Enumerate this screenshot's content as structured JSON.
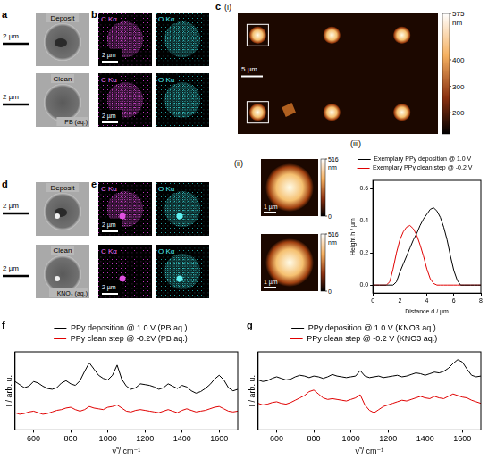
{
  "panels": {
    "a": {
      "letter": "a",
      "images": [
        {
          "label": "Deposit",
          "scale_bar": "2 µm"
        },
        {
          "label": "Clean",
          "medium": "PB (aq.)",
          "scale_bar": "2 µm"
        }
      ]
    },
    "b": {
      "letter": "b",
      "maps": [
        "C Kα",
        "O Kα"
      ],
      "rows": [
        {
          "scale_bar": "2 µm"
        },
        {
          "scale_bar": "2 µm"
        }
      ]
    },
    "c": {
      "letter": "c",
      "i": {
        "label": "(i)",
        "scale_bar": "5 µm",
        "colorbar": {
          "range": [
            120,
            575
          ],
          "ticks": [
            575,
            400,
            300,
            200
          ],
          "unit": "nm"
        }
      },
      "ii": {
        "label": "(ii)",
        "images": [
          {
            "scale_bar": "1 µm",
            "colorbar": {
              "range": [
                0,
                516
              ],
              "ticks": [
                516,
                0
              ],
              "unit": "nm"
            }
          },
          {
            "scale_bar": "1 µm",
            "colorbar": {
              "range": [
                0,
                516
              ],
              "ticks": [
                516,
                0
              ],
              "unit": "nm"
            }
          }
        ]
      }
    },
    "d": {
      "letter": "d",
      "images": [
        {
          "label": "Deposit",
          "scale_bar": "2 µm"
        },
        {
          "label": "Clean",
          "medium": "KNO₃ (aq.)",
          "scale_bar": "2 µm"
        }
      ]
    },
    "e": {
      "letter": "e",
      "maps": [
        "C Kα",
        "O Kα"
      ],
      "rows": [
        {
          "scale_bar": "2 µm"
        },
        {
          "scale_bar": "2 µm"
        }
      ]
    }
  },
  "chart_data": [
    {
      "letter": "(iii)",
      "type": "line",
      "x_label": "Distance d / µm",
      "y_label": "Height h / µm",
      "x": [
        0,
        0.25,
        0.5,
        0.75,
        1,
        1.25,
        1.5,
        1.75,
        2,
        2.25,
        2.5,
        2.75,
        3,
        3.25,
        3.5,
        3.75,
        4,
        4.25,
        4.5,
        4.75,
        5,
        5.25,
        5.5,
        5.75,
        6,
        6.25,
        6.5,
        6.75,
        7,
        7.25,
        7.5,
        7.75,
        8
      ],
      "series": [
        {
          "name": "Exemplary PPy deposition @ 1.0 V",
          "color": "#000000",
          "values": [
            0,
            0,
            0,
            0,
            0,
            0,
            0,
            0.02,
            0.08,
            0.13,
            0.18,
            0.23,
            0.28,
            0.32,
            0.37,
            0.41,
            0.44,
            0.47,
            0.48,
            0.46,
            0.42,
            0.36,
            0.28,
            0.18,
            0.09,
            0.03,
            0,
            0,
            0,
            0,
            0,
            0,
            0
          ]
        },
        {
          "name": "Exemplary PPy clean step @ -0.2 V",
          "color": "#e00000",
          "values": [
            0,
            0,
            0,
            0,
            0,
            0.02,
            0.1,
            0.2,
            0.28,
            0.33,
            0.36,
            0.37,
            0.35,
            0.31,
            0.25,
            0.18,
            0.1,
            0.04,
            0.01,
            0,
            0,
            0,
            0,
            0,
            0,
            0,
            0,
            0,
            0,
            0,
            0,
            0,
            0
          ]
        }
      ],
      "xlim": [
        0,
        8
      ],
      "xticks": [
        0,
        2,
        4,
        6,
        8
      ],
      "ylim": [
        -0.05,
        0.65
      ],
      "yticks": [
        {
          "value": 0,
          "label": "0.0"
        },
        {
          "value": 0.2,
          "label": "0.2"
        },
        {
          "value": 0.4,
          "label": "0.4"
        },
        {
          "value": 0.6,
          "label": "0.6"
        }
      ],
      "grid": false,
      "legend": "top"
    },
    {
      "letter": "f",
      "type": "line",
      "x_label": "ν̃ / cm⁻¹",
      "y_label": "I / arb. u.",
      "x": [
        500,
        525,
        550,
        575,
        600,
        625,
        650,
        675,
        700,
        725,
        750,
        775,
        800,
        825,
        850,
        875,
        900,
        925,
        950,
        975,
        1000,
        1025,
        1050,
        1075,
        1100,
        1125,
        1150,
        1175,
        1200,
        1225,
        1250,
        1275,
        1300,
        1325,
        1350,
        1375,
        1400,
        1425,
        1450,
        1475,
        1500,
        1525,
        1550,
        1575,
        1600,
        1625,
        1650,
        1675,
        1700
      ],
      "series": [
        {
          "name": "PPy deposition @ 1.0 V (PB aq.)",
          "color": "#000000",
          "values": [
            6.2,
            5.8,
            5.4,
            5.6,
            6.2,
            6.0,
            5.6,
            5.3,
            5.2,
            5.4,
            6.0,
            6.3,
            5.9,
            5.7,
            6.3,
            7.5,
            8.6,
            7.8,
            7.0,
            6.6,
            6.4,
            7.0,
            8.3,
            6.5,
            5.6,
            5.2,
            5.4,
            5.9,
            5.8,
            5.7,
            5.5,
            5.2,
            5.4,
            5.9,
            5.6,
            5.3,
            5.7,
            5.5,
            5.0,
            4.7,
            4.9,
            5.3,
            5.8,
            6.5,
            7.0,
            6.4,
            5.4,
            5.0,
            5.2
          ]
        },
        {
          "name": "PPy clean step @ -0.2V (PB aq.)",
          "color": "#e00000",
          "values": [
            2.2,
            2.0,
            2.1,
            2.3,
            2.4,
            2.2,
            2.0,
            2.1,
            2.3,
            2.5,
            2.6,
            2.8,
            2.9,
            2.6,
            2.4,
            2.6,
            3.0,
            2.8,
            2.7,
            2.6,
            2.9,
            3.0,
            3.2,
            2.8,
            2.4,
            2.3,
            2.5,
            2.6,
            2.5,
            2.4,
            2.3,
            2.2,
            2.4,
            2.6,
            2.4,
            2.2,
            2.5,
            2.7,
            2.5,
            2.3,
            2.4,
            2.5,
            2.7,
            2.9,
            3.0,
            2.7,
            2.4,
            2.3,
            2.4
          ]
        }
      ],
      "xlim": [
        500,
        1700
      ],
      "xticks": [
        600,
        800,
        1000,
        1200,
        1400,
        1600
      ],
      "ylim": [
        0,
        10
      ],
      "yticks": [],
      "tick_labels": "x",
      "grid": false,
      "legend": "top"
    },
    {
      "letter": "g",
      "type": "line",
      "x_label": "ν̃ / cm⁻¹",
      "y_label": "I / arb. u.",
      "x": [
        500,
        525,
        550,
        575,
        600,
        625,
        650,
        675,
        700,
        725,
        750,
        775,
        800,
        825,
        850,
        875,
        900,
        925,
        950,
        975,
        1000,
        1025,
        1050,
        1075,
        1100,
        1125,
        1150,
        1175,
        1200,
        1225,
        1250,
        1275,
        1300,
        1325,
        1350,
        1375,
        1400,
        1425,
        1450,
        1475,
        1500,
        1525,
        1550,
        1575,
        1600,
        1625,
        1650,
        1675,
        1700
      ],
      "series": [
        {
          "name": "PPy deposition @ 1.0 V (KNO3 aq.)",
          "color": "#000000",
          "values": [
            6.4,
            6.2,
            6.3,
            6.6,
            6.8,
            6.6,
            6.4,
            6.5,
            6.8,
            7.0,
            6.9,
            6.7,
            6.9,
            6.8,
            6.6,
            6.8,
            7.1,
            6.9,
            6.8,
            6.7,
            6.8,
            6.9,
            7.6,
            6.9,
            6.7,
            6.8,
            6.9,
            6.7,
            6.8,
            6.9,
            7.0,
            6.8,
            6.9,
            7.1,
            7.3,
            7.2,
            7.0,
            7.2,
            7.4,
            7.3,
            7.5,
            7.9,
            8.5,
            9.0,
            8.7,
            7.8,
            7.0,
            6.8,
            6.9
          ]
        },
        {
          "name": "PPy clean step @ -0.2 V (KNO3 aq.)",
          "color": "#e00000",
          "values": [
            3.4,
            3.2,
            3.3,
            3.5,
            3.6,
            3.4,
            3.3,
            3.5,
            3.8,
            4.1,
            4.4,
            4.9,
            5.1,
            4.6,
            4.1,
            3.9,
            4.0,
            3.9,
            3.8,
            3.7,
            3.9,
            4.1,
            4.5,
            3.2,
            2.5,
            2.2,
            2.6,
            3.0,
            3.2,
            3.4,
            3.6,
            3.8,
            3.7,
            3.9,
            4.1,
            4.3,
            4.1,
            4.0,
            4.3,
            4.1,
            4.0,
            4.3,
            4.6,
            4.4,
            4.2,
            4.1,
            3.8,
            3.6,
            3.4
          ]
        }
      ],
      "xlim": [
        500,
        1700
      ],
      "xticks": [
        600,
        800,
        1000,
        1200,
        1400,
        1600
      ],
      "ylim": [
        0,
        10
      ],
      "yticks": [],
      "tick_labels": "x",
      "grid": false,
      "legend": "top"
    }
  ]
}
